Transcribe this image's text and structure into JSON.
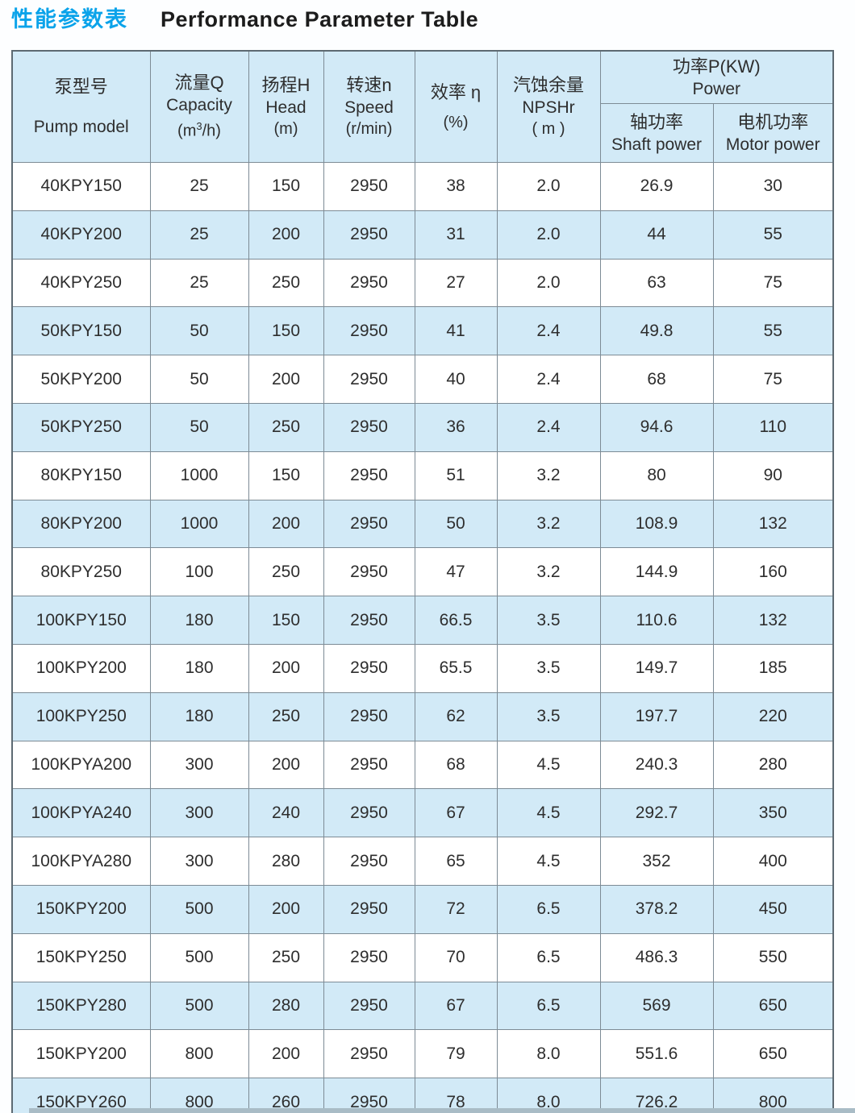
{
  "title": {
    "zh": "性能参数表",
    "en": "Performance Parameter Table"
  },
  "colors": {
    "accent_cyan": "#0aa3ea",
    "stripe_blue": "#d2eaf7",
    "border_gray": "#7d8b95",
    "text_dark": "#2e2e2e"
  },
  "table": {
    "column_keys": [
      "pump_model",
      "capacity",
      "head",
      "speed",
      "efficiency",
      "npshr",
      "shaft_power",
      "motor_power"
    ],
    "columns": {
      "pump_model": {
        "zh": "泵型号",
        "en": "Pump model"
      },
      "capacity": {
        "zh": "流量Q",
        "en": "Capacity",
        "unit_pre": "(m",
        "unit_sup": "3",
        "unit_post": "/h)"
      },
      "head": {
        "zh": "扬程H",
        "en": "Head",
        "unit": "(m)"
      },
      "speed": {
        "zh": "转速n",
        "en": "Speed",
        "unit": "(r/min)"
      },
      "efficiency": {
        "zh": "效率 η",
        "unit": "(%)"
      },
      "npshr": {
        "zh": "汽蚀余量",
        "en": "NPSHr",
        "unit": "( m )"
      },
      "power_group": {
        "zh": "功率P(KW)",
        "en": "Power"
      },
      "shaft_power": {
        "zh": "轴功率",
        "en": "Shaft power"
      },
      "motor_power": {
        "zh": "电机功率",
        "en": "Motor power"
      }
    },
    "rows": [
      [
        "40KPY150",
        "25",
        "150",
        "2950",
        "38",
        "2.0",
        "26.9",
        "30"
      ],
      [
        "40KPY200",
        "25",
        "200",
        "2950",
        "31",
        "2.0",
        "44",
        "55"
      ],
      [
        "40KPY250",
        "25",
        "250",
        "2950",
        "27",
        "2.0",
        "63",
        "75"
      ],
      [
        "50KPY150",
        "50",
        "150",
        "2950",
        "41",
        "2.4",
        "49.8",
        "55"
      ],
      [
        "50KPY200",
        "50",
        "200",
        "2950",
        "40",
        "2.4",
        "68",
        "75"
      ],
      [
        "50KPY250",
        "50",
        "250",
        "2950",
        "36",
        "2.4",
        "94.6",
        "110"
      ],
      [
        "80KPY150",
        "1000",
        "150",
        "2950",
        "51",
        "3.2",
        "80",
        "90"
      ],
      [
        "80KPY200",
        "1000",
        "200",
        "2950",
        "50",
        "3.2",
        "108.9",
        "132"
      ],
      [
        "80KPY250",
        "100",
        "250",
        "2950",
        "47",
        "3.2",
        "144.9",
        "160"
      ],
      [
        "100KPY150",
        "180",
        "150",
        "2950",
        "66.5",
        "3.5",
        "110.6",
        "132"
      ],
      [
        "100KPY200",
        "180",
        "200",
        "2950",
        "65.5",
        "3.5",
        "149.7",
        "185"
      ],
      [
        "100KPY250",
        "180",
        "250",
        "2950",
        "62",
        "3.5",
        "197.7",
        "220"
      ],
      [
        "100KPYA200",
        "300",
        "200",
        "2950",
        "68",
        "4.5",
        "240.3",
        "280"
      ],
      [
        "100KPYA240",
        "300",
        "240",
        "2950",
        "67",
        "4.5",
        "292.7",
        "350"
      ],
      [
        "100KPYA280",
        "300",
        "280",
        "2950",
        "65",
        "4.5",
        "352",
        "400"
      ],
      [
        "150KPY200",
        "500",
        "200",
        "2950",
        "72",
        "6.5",
        "378.2",
        "450"
      ],
      [
        "150KPY250",
        "500",
        "250",
        "2950",
        "70",
        "6.5",
        "486.3",
        "550"
      ],
      [
        "150KPY280",
        "500",
        "280",
        "2950",
        "67",
        "6.5",
        "569",
        "650"
      ],
      [
        "150KPY200",
        "800",
        "200",
        "2950",
        "79",
        "8.0",
        "551.6",
        "650"
      ],
      [
        "150KPY260",
        "800",
        "260",
        "2950",
        "78",
        "8.0",
        "726.2",
        "800"
      ]
    ]
  }
}
